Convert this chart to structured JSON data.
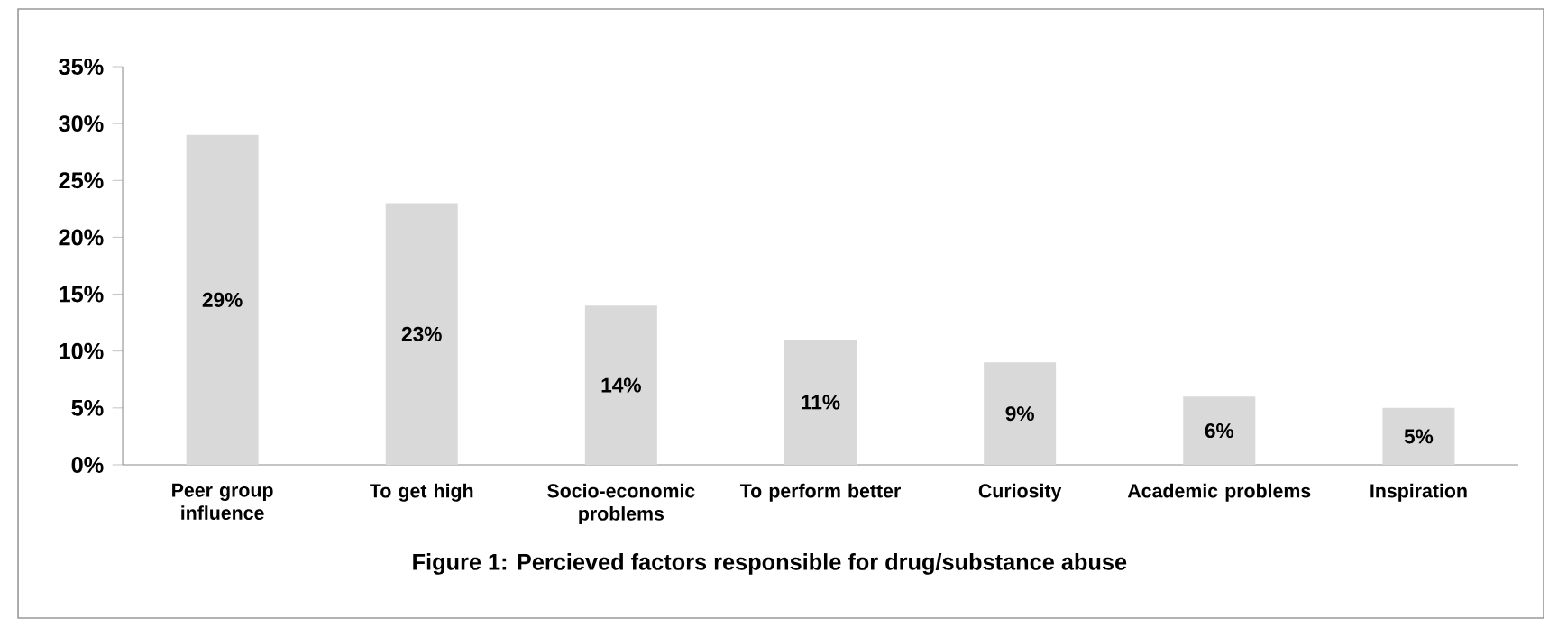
{
  "chart_data": {
    "type": "bar",
    "title": "Figure 1: Percieved factors responsible for drug/substance abuse",
    "categories": [
      "Peer group influence",
      "To get high",
      "Socio-economic problems",
      "To perform better",
      "Curiosity",
      "Academic problems",
      "Inspiration"
    ],
    "values": [
      29,
      23,
      14,
      11,
      9,
      6,
      5
    ],
    "value_labels": [
      "29%",
      "23%",
      "14%",
      "11%",
      "9%",
      "6%",
      "5%"
    ],
    "color": "#d9d9d9",
    "ylim": [
      0,
      35
    ],
    "yticks": [
      {
        "value": 0,
        "label": "0%"
      },
      {
        "value": 5,
        "label": "5%"
      },
      {
        "value": 10,
        "label": "10%"
      },
      {
        "value": 15,
        "label": "15%"
      },
      {
        "value": 20,
        "label": "20%"
      },
      {
        "value": 25,
        "label": "25%"
      },
      {
        "value": 30,
        "label": "30%"
      },
      {
        "value": 35,
        "label": "35%"
      }
    ],
    "grid": false
  }
}
